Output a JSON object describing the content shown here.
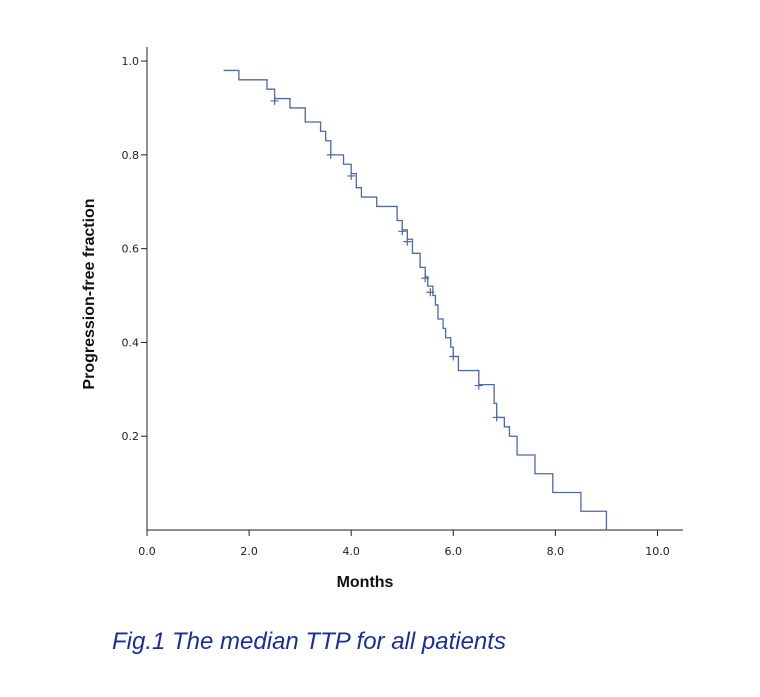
{
  "caption": "Fig.1 The median TTP for all patients",
  "chart_data": {
    "type": "line",
    "subtype": "kaplan-meier-step",
    "xlabel": "Months",
    "ylabel": "Progression-free fraction",
    "xlim": [
      0,
      10.5
    ],
    "ylim": [
      0,
      1.03
    ],
    "x_ticks": [
      "0.0",
      "2.0",
      "4.0",
      "6.0",
      "8.0",
      "10.0"
    ],
    "x_tick_values": [
      0,
      2,
      4,
      6,
      8,
      10
    ],
    "y_ticks": [
      "0.2",
      "0.4",
      "0.6",
      "0.8",
      "1.0"
    ],
    "y_tick_values": [
      0.2,
      0.4,
      0.6,
      0.8,
      1.0
    ],
    "grid": false,
    "series": [
      {
        "color": "#4a6aa8",
        "steps": [
          [
            1.5,
            0.98
          ],
          [
            1.8,
            0.96
          ],
          [
            2.35,
            0.94
          ],
          [
            2.5,
            0.92
          ],
          [
            2.8,
            0.9
          ],
          [
            3.1,
            0.87
          ],
          [
            3.4,
            0.85
          ],
          [
            3.5,
            0.83
          ],
          [
            3.6,
            0.8
          ],
          [
            3.85,
            0.78
          ],
          [
            4.0,
            0.76
          ],
          [
            4.1,
            0.73
          ],
          [
            4.2,
            0.71
          ],
          [
            4.5,
            0.69
          ],
          [
            4.9,
            0.66
          ],
          [
            5.0,
            0.64
          ],
          [
            5.1,
            0.62
          ],
          [
            5.2,
            0.59
          ],
          [
            5.35,
            0.56
          ],
          [
            5.45,
            0.54
          ],
          [
            5.5,
            0.52
          ],
          [
            5.6,
            0.5
          ],
          [
            5.65,
            0.48
          ],
          [
            5.7,
            0.45
          ],
          [
            5.8,
            0.43
          ],
          [
            5.85,
            0.41
          ],
          [
            5.95,
            0.39
          ],
          [
            6.0,
            0.37
          ],
          [
            6.1,
            0.34
          ],
          [
            6.5,
            0.31
          ],
          [
            6.8,
            0.27
          ],
          [
            6.85,
            0.24
          ],
          [
            7.0,
            0.22
          ],
          [
            7.1,
            0.2
          ],
          [
            7.25,
            0.16
          ],
          [
            7.6,
            0.12
          ],
          [
            7.95,
            0.08
          ],
          [
            8.5,
            0.04
          ],
          [
            9.0,
            0.0
          ]
        ],
        "end_x": 9.0,
        "censored": [
          [
            2.5,
            0.915
          ],
          [
            3.6,
            0.8
          ],
          [
            4.0,
            0.755
          ],
          [
            5.0,
            0.637
          ],
          [
            5.1,
            0.615
          ],
          [
            5.45,
            0.537
          ],
          [
            5.55,
            0.507
          ],
          [
            6.0,
            0.37
          ],
          [
            6.5,
            0.308
          ],
          [
            6.85,
            0.24
          ]
        ]
      }
    ]
  }
}
